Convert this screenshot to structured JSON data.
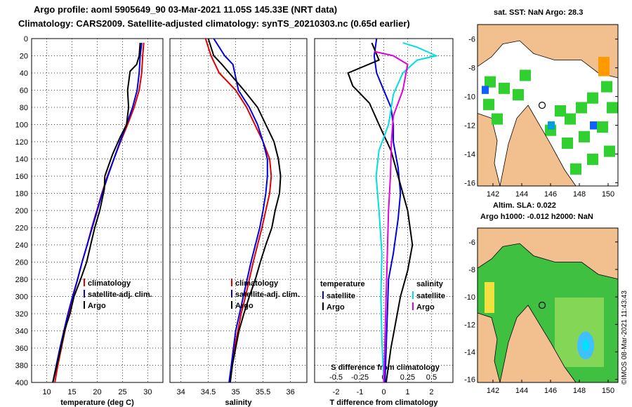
{
  "header": {
    "line1": "Argo profile: aoml 5905649_90 03-Mar-2021 11.05S 145.33E (NRT data)",
    "line2": "Climatology: CARS2009. Satellite-adjusted climatology: synTS_20210303.nc (0.65d earlier)"
  },
  "credit": "©IMOS 08-Mar-2021 11:43:43",
  "colors": {
    "red": "#e00000",
    "blue": "#0000e0",
    "black": "#000000",
    "magenta": "#e000e0",
    "cyan": "#00e0e0",
    "land": "#f2bf8f"
  },
  "chart_data": [
    {
      "type": "line",
      "title": "temperature",
      "xlabel": "temperature (deg C)",
      "ylabel": "",
      "xlim": [
        7,
        33
      ],
      "ylim": [
        400,
        0
      ],
      "xticks": [
        10,
        15,
        20,
        25,
        30
      ],
      "yticks": [
        0,
        20,
        40,
        60,
        80,
        100,
        120,
        140,
        160,
        180,
        200,
        220,
        240,
        260,
        280,
        300,
        320,
        340,
        360,
        380,
        400
      ],
      "legend": [
        "climatology",
        "satellite-adj. clim.",
        "Argo"
      ],
      "series": [
        {
          "name": "climatology",
          "color": "red",
          "points": [
            [
              29.2,
              5
            ],
            [
              29.0,
              20
            ],
            [
              28.8,
              40
            ],
            [
              28.3,
              60
            ],
            [
              27.3,
              80
            ],
            [
              26.0,
              100
            ],
            [
              24.6,
              120
            ],
            [
              23.3,
              140
            ],
            [
              22.0,
              160
            ],
            [
              20.9,
              180
            ],
            [
              19.9,
              200
            ],
            [
              18.9,
              220
            ],
            [
              18.0,
              240
            ],
            [
              17.0,
              260
            ],
            [
              16.1,
              280
            ],
            [
              15.2,
              300
            ],
            [
              14.4,
              320
            ],
            [
              13.6,
              340
            ],
            [
              12.9,
              360
            ],
            [
              12.2,
              380
            ],
            [
              11.6,
              400
            ]
          ]
        },
        {
          "name": "satellite-adj. clim.",
          "color": "blue",
          "points": [
            [
              28.8,
              5
            ],
            [
              28.5,
              20
            ],
            [
              28.3,
              40
            ],
            [
              27.9,
              60
            ],
            [
              27.0,
              80
            ],
            [
              25.8,
              100
            ],
            [
              24.5,
              120
            ],
            [
              23.3,
              140
            ],
            [
              22.1,
              160
            ],
            [
              21.0,
              180
            ],
            [
              20.0,
              200
            ],
            [
              19.0,
              220
            ],
            [
              18.0,
              240
            ],
            [
              17.0,
              260
            ],
            [
              16.1,
              280
            ],
            [
              15.1,
              300
            ],
            [
              14.2,
              320
            ],
            [
              13.4,
              340
            ],
            [
              12.6,
              360
            ],
            [
              11.9,
              380
            ],
            [
              11.2,
              400
            ]
          ]
        },
        {
          "name": "Argo",
          "color": "black",
          "points": [
            [
              28.5,
              5
            ],
            [
              28.3,
              20
            ],
            [
              27.8,
              30
            ],
            [
              26.5,
              38
            ],
            [
              26.0,
              60
            ],
            [
              26.2,
              80
            ],
            [
              25.8,
              100
            ],
            [
              24.5,
              115
            ],
            [
              23.0,
              135
            ],
            [
              21.5,
              160
            ],
            [
              21.4,
              175
            ],
            [
              20.5,
              200
            ],
            [
              19.5,
              220
            ],
            [
              18.7,
              240
            ],
            [
              17.9,
              260
            ],
            [
              16.7,
              280
            ],
            [
              15.4,
              300
            ],
            [
              14.6,
              320
            ],
            [
              13.5,
              340
            ],
            [
              12.8,
              360
            ],
            [
              12.0,
              380
            ],
            [
              11.2,
              400
            ]
          ]
        }
      ]
    },
    {
      "type": "line",
      "title": "salinity",
      "xlabel": "salinity",
      "xlim": [
        33.8,
        36.3
      ],
      "ylim": [
        400,
        0
      ],
      "xticks": [
        34,
        34.5,
        35,
        35.5,
        36
      ],
      "legend": [
        "climatology",
        "satellite-adj. clim.",
        "Argo"
      ],
      "series": [
        {
          "name": "climatology",
          "color": "red",
          "points": [
            [
              34.45,
              0
            ],
            [
              34.55,
              20
            ],
            [
              34.7,
              40
            ],
            [
              35.0,
              60
            ],
            [
              35.2,
              80
            ],
            [
              35.35,
              100
            ],
            [
              35.5,
              120
            ],
            [
              35.62,
              140
            ],
            [
              35.65,
              160
            ],
            [
              35.62,
              180
            ],
            [
              35.55,
              200
            ],
            [
              35.48,
              220
            ],
            [
              35.4,
              240
            ],
            [
              35.32,
              260
            ],
            [
              35.25,
              280
            ],
            [
              35.18,
              300
            ],
            [
              35.1,
              320
            ],
            [
              35.04,
              340
            ],
            [
              34.98,
              360
            ],
            [
              34.94,
              380
            ],
            [
              34.9,
              400
            ]
          ]
        },
        {
          "name": "satellite-adj. clim.",
          "color": "blue",
          "points": [
            [
              34.6,
              0
            ],
            [
              34.8,
              20
            ],
            [
              34.95,
              30
            ],
            [
              35.05,
              60
            ],
            [
              35.25,
              80
            ],
            [
              35.4,
              100
            ],
            [
              35.5,
              120
            ],
            [
              35.58,
              140
            ],
            [
              35.58,
              160
            ],
            [
              35.55,
              180
            ],
            [
              35.5,
              200
            ],
            [
              35.44,
              220
            ],
            [
              35.36,
              240
            ],
            [
              35.28,
              260
            ],
            [
              35.21,
              280
            ],
            [
              35.14,
              300
            ],
            [
              35.07,
              320
            ],
            [
              35.0,
              340
            ],
            [
              34.96,
              360
            ],
            [
              34.92,
              380
            ],
            [
              34.88,
              400
            ]
          ]
        },
        {
          "name": "Argo",
          "color": "black",
          "points": [
            [
              34.5,
              0
            ],
            [
              34.6,
              20
            ],
            [
              34.75,
              30
            ],
            [
              35.15,
              60
            ],
            [
              35.4,
              80
            ],
            [
              35.55,
              100
            ],
            [
              35.7,
              120
            ],
            [
              35.78,
              140
            ],
            [
              35.82,
              160
            ],
            [
              35.8,
              180
            ],
            [
              35.72,
              200
            ],
            [
              35.66,
              220
            ],
            [
              35.55,
              240
            ],
            [
              35.45,
              260
            ],
            [
              35.36,
              280
            ],
            [
              35.25,
              300
            ],
            [
              35.15,
              320
            ],
            [
              35.06,
              340
            ],
            [
              35.0,
              360
            ],
            [
              34.94,
              380
            ],
            [
              34.9,
              400
            ]
          ]
        }
      ]
    },
    {
      "type": "line",
      "title": "difference from climatology",
      "xlabel": "T difference from climatology",
      "x2label": "S difference from climatology",
      "xlim": [
        -2.9,
        2.9
      ],
      "x2lim": [
        -0.725,
        0.725
      ],
      "ylim": [
        400,
        0
      ],
      "xticks": [
        -2,
        -1,
        0,
        1,
        2
      ],
      "x2ticks": [
        -0.5,
        -0.25,
        0,
        0.25,
        0.5
      ],
      "legend_left_title": "temperature",
      "legend_right_title": "salinity",
      "legend_left": [
        "satellite",
        "Argo"
      ],
      "legend_right": [
        "satellite",
        "Argo"
      ],
      "series": [
        {
          "name": "T satellite",
          "axis": "T",
          "color": "blue",
          "points": [
            [
              -0.3,
              0
            ],
            [
              -0.4,
              20
            ],
            [
              -0.3,
              40
            ],
            [
              0.3,
              80
            ],
            [
              0.4,
              100
            ],
            [
              0.4,
              120
            ],
            [
              0.6,
              150
            ],
            [
              0.7,
              180
            ],
            [
              0.6,
              210
            ],
            [
              0.4,
              250
            ],
            [
              0.2,
              280
            ],
            [
              0.15,
              320
            ],
            [
              0.1,
              360
            ],
            [
              0.05,
              400
            ]
          ]
        },
        {
          "name": "T Argo",
          "axis": "T",
          "color": "black",
          "points": [
            [
              -0.5,
              5
            ],
            [
              -0.2,
              25
            ],
            [
              -1.5,
              40
            ],
            [
              -1.3,
              55
            ],
            [
              -0.6,
              75
            ],
            [
              -0.2,
              100
            ],
            [
              0.3,
              130
            ],
            [
              0.6,
              160
            ],
            [
              1.0,
              200
            ],
            [
              1.2,
              240
            ],
            [
              1.0,
              270
            ],
            [
              0.7,
              300
            ],
            [
              0.5,
              330
            ],
            [
              0.3,
              360
            ],
            [
              0.1,
              400
            ]
          ]
        },
        {
          "name": "S satellite",
          "axis": "S",
          "color": "cyan",
          "points": [
            [
              0.2,
              5
            ],
            [
              0.35,
              10
            ],
            [
              0.55,
              20
            ],
            [
              0.35,
              25
            ],
            [
              0.2,
              40
            ],
            [
              0.1,
              65
            ],
            [
              0.05,
              100
            ],
            [
              -0.05,
              130
            ],
            [
              -0.08,
              160
            ],
            [
              -0.05,
              200
            ],
            [
              -0.02,
              250
            ],
            [
              -0.03,
              300
            ],
            [
              -0.02,
              350
            ],
            [
              0.0,
              400
            ]
          ]
        },
        {
          "name": "S Argo",
          "axis": "S",
          "color": "magenta",
          "points": [
            [
              -0.1,
              15
            ],
            [
              0.1,
              20
            ],
            [
              0.25,
              30
            ],
            [
              0.2,
              60
            ],
            [
              0.1,
              90
            ],
            [
              0.08,
              120
            ],
            [
              0.07,
              160
            ],
            [
              0.05,
              200
            ],
            [
              0.04,
              240
            ],
            [
              0.03,
              280
            ],
            [
              0.02,
              320
            ],
            [
              0.01,
              360
            ],
            [
              0.0,
              400
            ]
          ]
        }
      ]
    }
  ],
  "maps": [
    {
      "title": "sat. SST: NaN Argo: 28.3",
      "footer": "Altim. SLA: 0.022",
      "xticks": [
        "142",
        "144",
        "146",
        "148",
        "150"
      ],
      "yticks": [
        "-6",
        "-8",
        "-10",
        "-12",
        "-14",
        "-16"
      ]
    },
    {
      "title": "Argo h1000: -0.012 h2000: NaN",
      "xticks": [
        "142",
        "144",
        "146",
        "148",
        "150"
      ],
      "yticks": [
        "-6",
        "-8",
        "-10",
        "-12",
        "-14",
        "-16"
      ]
    }
  ]
}
